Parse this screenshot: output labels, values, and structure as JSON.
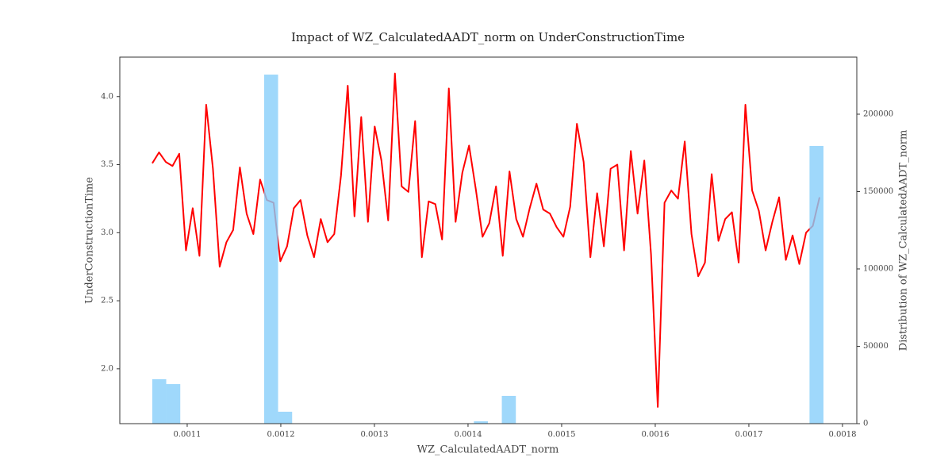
{
  "chart_data": {
    "type": "line",
    "title": "Impact of WZ_CalculatedAADT_norm on UnderConstructionTime",
    "xlabel": "WZ_CalculatedAADT_norm",
    "ylabel": "UnderConstructionTime",
    "y2label": "Distribution of WZ_CalculatedAADT_norm",
    "color": "#ff0000",
    "x": [
      0.0010627,
      0.0010699,
      0.0010771,
      0.0010843,
      0.0010915,
      0.0010987,
      0.0011059,
      0.0011131,
      0.0011203,
      0.0011275,
      0.0011347,
      0.0011419,
      0.0011491,
      0.0011563,
      0.0011635,
      0.0011707,
      0.0011779,
      0.0011851,
      0.0011923,
      0.0011995,
      0.0012067,
      0.0012139,
      0.0012211,
      0.0012283,
      0.0012355,
      0.0012427,
      0.0012499,
      0.0012571,
      0.0012643,
      0.0012715,
      0.0012787,
      0.0012859,
      0.0012931,
      0.0013003,
      0.0013075,
      0.0013147,
      0.0013219,
      0.0013291,
      0.0013363,
      0.0013435,
      0.0013507,
      0.0013579,
      0.0013651,
      0.0013723,
      0.0013795,
      0.0013867,
      0.0013939,
      0.0014011,
      0.0014083,
      0.0014155,
      0.0014227,
      0.0014299,
      0.0014371,
      0.0014443,
      0.0014515,
      0.0014587,
      0.0014659,
      0.0014731,
      0.0014803,
      0.0014875,
      0.0014947,
      0.0015019,
      0.0015091,
      0.0015163,
      0.0015235,
      0.0015307,
      0.0015379,
      0.0015451,
      0.0015523,
      0.0015595,
      0.0015667,
      0.0015739,
      0.0015811,
      0.0015883,
      0.0015955,
      0.0016027,
      0.0016099,
      0.0016171,
      0.0016243,
      0.0016315,
      0.0016387,
      0.0016459,
      0.0016531,
      0.0016603,
      0.0016675,
      0.0016747,
      0.0016819,
      0.0016891,
      0.0016963,
      0.0017035,
      0.0017107,
      0.0017179,
      0.0017251,
      0.0017323,
      0.0017395,
      0.0017467,
      0.0017539,
      0.0017611,
      0.0017683,
      0.0017755
    ],
    "values": [
      3.51,
      3.59,
      3.52,
      3.49,
      3.58,
      2.87,
      3.18,
      2.83,
      3.94,
      3.47,
      2.75,
      2.93,
      3.02,
      3.48,
      3.14,
      2.99,
      3.39,
      3.24,
      3.22,
      2.79,
      2.9,
      3.18,
      3.24,
      2.98,
      2.82,
      3.1,
      2.93,
      2.99,
      3.42,
      4.08,
      3.12,
      3.85,
      3.08,
      3.78,
      3.53,
      3.09,
      4.17,
      3.34,
      3.3,
      3.82,
      2.82,
      3.23,
      3.21,
      2.95,
      4.06,
      3.08,
      3.44,
      3.64,
      3.32,
      2.97,
      3.07,
      3.34,
      2.83,
      3.45,
      3.1,
      2.97,
      3.18,
      3.36,
      3.17,
      3.14,
      3.04,
      2.97,
      3.19,
      3.8,
      3.52,
      2.82,
      3.29,
      2.9,
      3.47,
      3.5,
      2.87,
      3.6,
      3.14,
      3.53,
      2.84,
      1.72,
      3.22,
      3.31,
      3.25,
      3.67,
      2.99,
      2.68,
      2.78,
      3.43,
      2.94,
      3.1,
      3.15,
      2.78,
      3.94,
      3.31,
      3.16,
      2.87,
      3.08,
      3.26,
      2.8,
      2.98,
      2.77,
      3.0,
      3.05,
      3.26
    ],
    "histogram": {
      "axis": "y2",
      "color": "#87cefa",
      "bins": [
        0.0010627,
        0.0010776,
        0.0010926,
        0.0011075,
        0.0011225,
        0.0011374,
        0.0011523,
        0.0011673,
        0.0011822,
        0.0011971,
        0.0012121,
        0.001227,
        0.001242,
        0.0012569,
        0.0012718,
        0.0012868,
        0.0013017,
        0.0013166,
        0.0013316,
        0.0013465,
        0.0013615,
        0.0013764,
        0.0013913,
        0.0014063,
        0.0014212,
        0.0014361,
        0.0014511,
        0.001466,
        0.001481,
        0.0014959,
        0.0015108,
        0.0015258,
        0.0015407,
        0.0015556,
        0.0015706,
        0.0015855,
        0.0016005,
        0.0016154,
        0.0016303,
        0.0016453,
        0.0016602,
        0.0016751,
        0.0016901,
        0.001705,
        0.00172,
        0.0017349,
        0.0017498,
        0.0017648,
        0.0017797
      ],
      "counts": [
        28700,
        25600,
        0,
        0,
        0,
        0,
        0,
        0,
        225600,
        7700,
        0,
        0,
        0,
        0,
        0,
        0,
        0,
        0,
        0,
        0,
        0,
        0,
        0,
        1500,
        0,
        17950,
        0,
        0,
        0,
        0,
        0,
        0,
        0,
        0,
        0,
        0,
        0,
        0,
        0,
        0,
        0,
        0,
        0,
        0,
        0,
        0,
        0,
        179500
      ]
    },
    "xlim": [
      0.001028,
      0.0018153
    ],
    "ylim": [
      1.597,
      4.29
    ],
    "y2lim": [
      0,
      236900
    ],
    "xticks": [
      0.0011,
      0.0012,
      0.0013,
      0.0014,
      0.0015,
      0.0016,
      0.0017,
      0.0018
    ],
    "yticks": [
      {
        "value": 2,
        "label": "2.0"
      },
      2.5,
      {
        "value": 3,
        "label": "3.0"
      },
      3.5,
      {
        "value": 4,
        "label": "4.0"
      }
    ],
    "y2ticks": [
      0,
      50000,
      100000,
      150000,
      200000
    ]
  }
}
